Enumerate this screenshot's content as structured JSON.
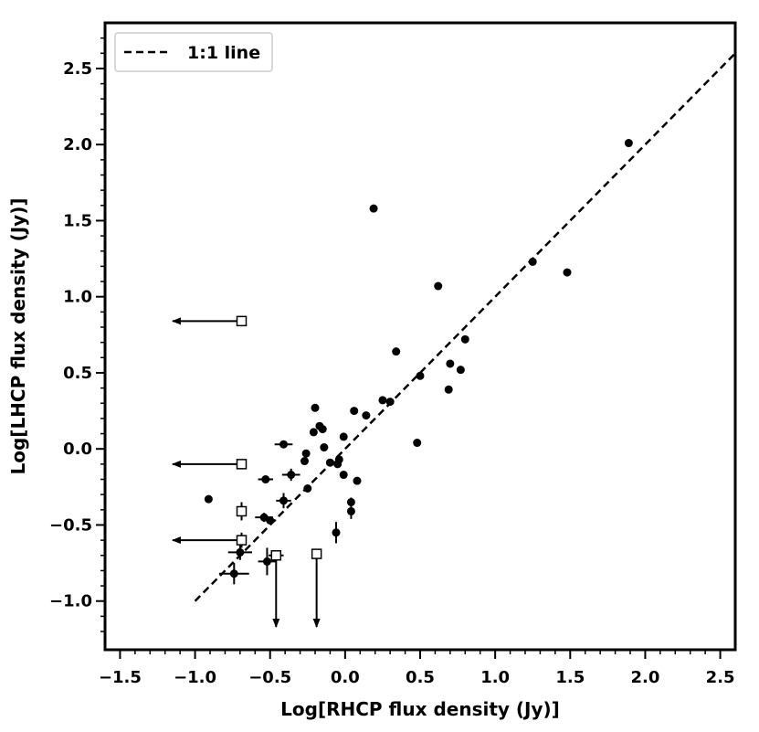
{
  "chart_data": {
    "type": "scatter",
    "xlabel": "Log[RHCP flux density (Jy)]",
    "ylabel": "Log[LHCP flux density (Jy)]",
    "xlim": [
      -1.6,
      2.6
    ],
    "ylim": [
      -1.32,
      2.8
    ],
    "xticks": [
      -1.5,
      -1.0,
      -0.5,
      0.0,
      0.5,
      1.0,
      1.5,
      2.0,
      2.5
    ],
    "xtick_labels": [
      "−1.5",
      "−1.0",
      "−0.5",
      "0.0",
      "0.5",
      "1.0",
      "1.5",
      "2.0",
      "2.5"
    ],
    "yticks": [
      -1.0,
      -0.5,
      0.0,
      0.5,
      1.0,
      1.5,
      2.0,
      2.5
    ],
    "ytick_labels": [
      "−1.0",
      "−0.5",
      "0.0",
      "0.5",
      "1.0",
      "1.5",
      "2.0",
      "2.5"
    ],
    "grid": false,
    "legend_position": "top-left",
    "legend": [
      "1:1 line"
    ],
    "one_to_one_line": {
      "x": [
        -1.0,
        2.6
      ],
      "y": [
        -1.0,
        2.6
      ]
    },
    "points": [
      {
        "x": 1.89,
        "y": 2.01
      },
      {
        "x": 1.25,
        "y": 1.23
      },
      {
        "x": 1.48,
        "y": 1.16
      },
      {
        "x": 0.19,
        "y": 1.58
      },
      {
        "x": 0.62,
        "y": 1.07
      },
      {
        "x": 0.8,
        "y": 0.72
      },
      {
        "x": 0.34,
        "y": 0.64
      },
      {
        "x": 0.7,
        "y": 0.56
      },
      {
        "x": 0.77,
        "y": 0.52
      },
      {
        "x": 0.5,
        "y": 0.48
      },
      {
        "x": 0.69,
        "y": 0.39
      },
      {
        "x": 0.25,
        "y": 0.32
      },
      {
        "x": 0.3,
        "y": 0.31
      },
      {
        "x": -0.2,
        "y": 0.27
      },
      {
        "x": 0.06,
        "y": 0.25
      },
      {
        "x": 0.14,
        "y": 0.22
      },
      {
        "x": -0.17,
        "y": 0.15
      },
      {
        "x": -0.15,
        "y": 0.13
      },
      {
        "x": -0.21,
        "y": 0.11
      },
      {
        "x": -0.01,
        "y": 0.08
      },
      {
        "x": 0.48,
        "y": 0.04
      },
      {
        "x": -0.41,
        "y": 0.03,
        "xerr": 0.06
      },
      {
        "x": -0.14,
        "y": 0.01
      },
      {
        "x": -0.26,
        "y": -0.03
      },
      {
        "x": -0.27,
        "y": -0.08
      },
      {
        "x": -0.1,
        "y": -0.09
      },
      {
        "x": -0.04,
        "y": -0.07
      },
      {
        "x": -0.05,
        "y": -0.1
      },
      {
        "x": -0.01,
        "y": -0.17
      },
      {
        "x": -0.36,
        "y": -0.17,
        "xerr": 0.06,
        "yerr": 0.04
      },
      {
        "x": -0.53,
        "y": -0.2,
        "xerr": 0.05
      },
      {
        "x": 0.08,
        "y": -0.21
      },
      {
        "x": -0.25,
        "y": -0.26
      },
      {
        "x": -0.91,
        "y": -0.33
      },
      {
        "x": -0.41,
        "y": -0.34,
        "xerr": 0.05,
        "yerr": 0.05
      },
      {
        "x": 0.04,
        "y": -0.35,
        "yerr": 0.03
      },
      {
        "x": 0.04,
        "y": -0.41,
        "yerr": 0.05
      },
      {
        "x": -0.54,
        "y": -0.45,
        "xerr": 0.06,
        "yerr": 0.03
      },
      {
        "x": -0.5,
        "y": -0.47,
        "xerr": 0.04
      },
      {
        "x": -0.06,
        "y": -0.55,
        "yerr": 0.07
      },
      {
        "x": -0.7,
        "y": -0.68,
        "xerr": 0.08,
        "yerr": 0.05
      },
      {
        "x": -0.52,
        "y": -0.74,
        "xerr": 0.06,
        "yerr": 0.09
      },
      {
        "x": -0.74,
        "y": -0.82,
        "xerr": 0.1,
        "yerr": 0.07
      }
    ],
    "upper_limits_x": [
      {
        "x": -0.69,
        "y": 0.84,
        "x_arrow_to": -1.15
      },
      {
        "x": -0.69,
        "y": -0.1,
        "x_arrow_to": -1.15
      },
      {
        "x": -0.69,
        "y": -0.6,
        "x_arrow_to": -1.15,
        "yerr": 0.05
      }
    ],
    "upper_limits_y": [
      {
        "x": -0.46,
        "y": -0.7,
        "y_arrow_to": -1.17,
        "xerr": 0.05
      },
      {
        "x": -0.19,
        "y": -0.69,
        "y_arrow_to": -1.17
      }
    ],
    "open_squares": [
      {
        "x": -0.69,
        "y": -0.41,
        "yerr": 0.06
      }
    ]
  }
}
